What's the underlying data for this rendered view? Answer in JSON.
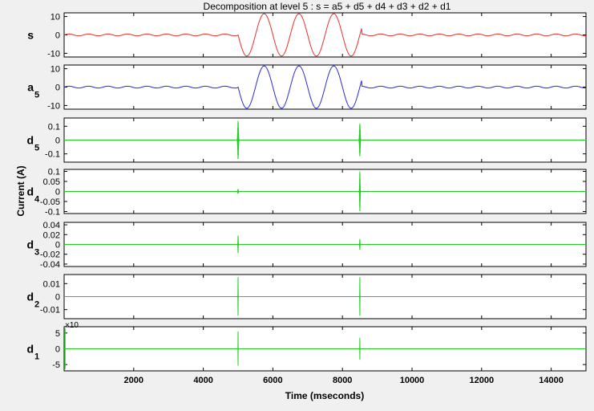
{
  "figure": {
    "title": "Decomposition at level 5 : s = a5 + d5 + d4 + d3 + d2 + d1",
    "xlabel": "Time (mseconds)",
    "ylabel": "Current (A)",
    "background": "#f0f0f0"
  },
  "chart_data": [
    {
      "type": "line",
      "panel": "s",
      "label_main": "s",
      "label_sub": "",
      "color": "#e8312a",
      "xlim": [
        0,
        15000
      ],
      "ylim": [
        -12,
        12
      ],
      "yticks": [
        -10,
        0,
        10
      ],
      "ytick_labels": [
        "-10",
        "0",
        "10"
      ],
      "signal": {
        "base_amp": 0.5,
        "base_period": 560,
        "burst_start": 5000,
        "burst_end": 8550,
        "burst_amp": 11.5,
        "burst_period": 1000
      }
    },
    {
      "type": "line",
      "panel": "a5",
      "label_main": "a",
      "label_sub": "5",
      "color": "#2b2bd6",
      "xlim": [
        0,
        15000
      ],
      "ylim": [
        -12,
        12
      ],
      "yticks": [
        -10,
        0,
        10
      ],
      "ytick_labels": [
        "-10",
        "0",
        "10"
      ],
      "signal": {
        "base_amp": 0.5,
        "base_period": 560,
        "burst_start": 5000,
        "burst_end": 8550,
        "burst_amp": 11.5,
        "burst_period": 1000
      }
    },
    {
      "type": "line",
      "panel": "d5",
      "label_main": "d",
      "label_sub": "5",
      "color": "#22cc22",
      "xlim": [
        0,
        15000
      ],
      "ylim": [
        -0.16,
        0.16
      ],
      "yticks": [
        -0.1,
        0,
        0.1
      ],
      "ytick_labels": [
        "-0.1",
        "0",
        "0.1"
      ],
      "spikes": [
        {
          "x": 5000,
          "amp": 0.14,
          "width": 60
        },
        {
          "x": 8500,
          "amp": 0.12,
          "width": 60
        }
      ]
    },
    {
      "type": "line",
      "panel": "d4",
      "label_main": "d",
      "label_sub": "4",
      "color": "#22cc22",
      "xlim": [
        0,
        15000
      ],
      "ylim": [
        -0.11,
        0.11
      ],
      "yticks": [
        -0.1,
        -0.05,
        0,
        0.05,
        0.1
      ],
      "ytick_labels": [
        "-0.1",
        "-0.05",
        "0",
        "0.05",
        "0.1"
      ],
      "spikes": [
        {
          "x": 5000,
          "amp": 0.012,
          "width": 40
        },
        {
          "x": 8500,
          "amp": 0.1,
          "width": 40
        }
      ]
    },
    {
      "type": "line",
      "panel": "d3",
      "label_main": "d",
      "label_sub": "3",
      "color": "#22cc22",
      "xlim": [
        0,
        15000
      ],
      "ylim": [
        -0.045,
        0.045
      ],
      "yticks": [
        -0.04,
        -0.02,
        0,
        0.02,
        0.04
      ],
      "ytick_labels": [
        "-0.04",
        "-0.02",
        "0",
        "0.02",
        "0.04"
      ],
      "spikes": [
        {
          "x": 5000,
          "amp": 0.018,
          "width": 24
        },
        {
          "x": 8500,
          "amp": 0.011,
          "width": 24
        }
      ]
    },
    {
      "type": "line",
      "panel": "d2",
      "label_main": "d",
      "label_sub": "2",
      "color": "#22cc22",
      "xlim": [
        0,
        15000
      ],
      "ylim": [
        -0.017,
        0.017
      ],
      "yticks": [
        -0.01,
        0,
        0.01
      ],
      "ytick_labels": [
        "-0.01",
        "0",
        "0.01"
      ],
      "spikes": [
        {
          "x": 5000,
          "amp": 0.015,
          "width": 14
        },
        {
          "x": 8500,
          "amp": 0.015,
          "width": 14
        }
      ]
    },
    {
      "type": "line",
      "panel": "d1",
      "label_main": "d",
      "label_sub": "1",
      "color": "#22cc22",
      "xlim": [
        0,
        15000
      ],
      "ylim": [
        -7,
        7
      ],
      "yticks": [
        -5,
        0,
        5
      ],
      "ytick_labels": [
        "-5",
        "0",
        "5"
      ],
      "exponent_label": "×10",
      "edge_spike": {
        "x": 0,
        "amp": 6.5
      },
      "spikes": [
        {
          "x": 5000,
          "amp": 5.5,
          "width": 10
        },
        {
          "x": 8500,
          "amp": 3.5,
          "width": 10
        }
      ]
    }
  ],
  "xaxis": {
    "ticks": [
      2000,
      4000,
      6000,
      8000,
      10000,
      12000,
      14000
    ],
    "tick_labels": [
      "2000",
      "4000",
      "6000",
      "8000",
      "10000",
      "12000",
      "14000"
    ]
  }
}
